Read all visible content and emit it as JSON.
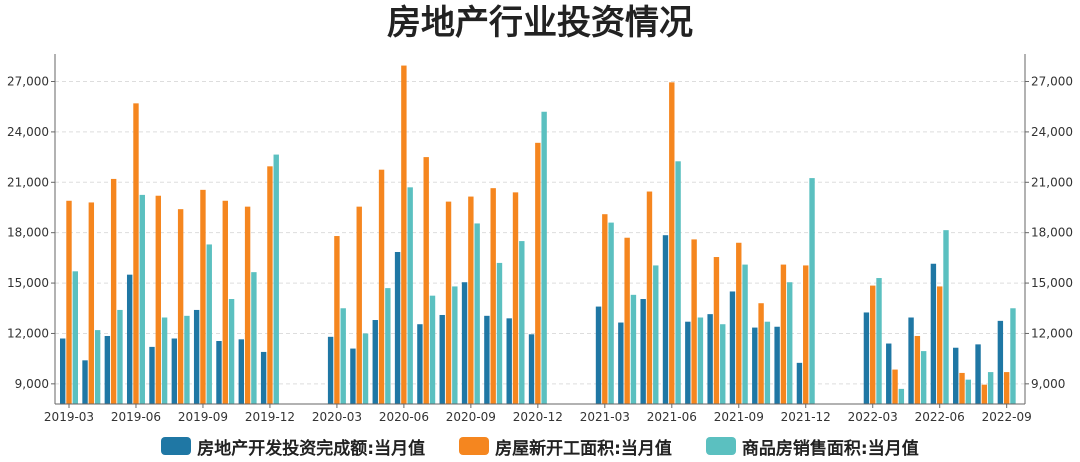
{
  "chart_data": {
    "type": "bar",
    "title": "房地产行业投资情况",
    "xlabel": "",
    "ylabel": "",
    "ylim": [
      7800,
      28400
    ],
    "yticks": [
      9000,
      12000,
      15000,
      18000,
      21000,
      24000,
      27000
    ],
    "ytick_labels": [
      "9,000",
      "12,000",
      "15,000",
      "18,000",
      "21,000",
      "24,000",
      "27,000"
    ],
    "x_tick_labels": [
      "2019-03",
      "2019-06",
      "2019-09",
      "2019-12",
      "2020-03",
      "2020-06",
      "2020-09",
      "2020-12",
      "2021-03",
      "2021-06",
      "2021-09",
      "2021-12",
      "2022-03",
      "2022-06",
      "2022-09"
    ],
    "legend_position": "bottom",
    "grid": true,
    "categories": [
      "2019-03",
      "2019-04",
      "2019-05",
      "2019-06",
      "2019-07",
      "2019-08",
      "2019-09",
      "2019-10",
      "2019-11",
      "2019-12",
      "2020-01",
      "2020-02",
      "2020-03",
      "2020-04",
      "2020-05",
      "2020-06",
      "2020-07",
      "2020-08",
      "2020-09",
      "2020-10",
      "2020-11",
      "2020-12",
      "2021-01",
      "2021-02",
      "2021-03",
      "2021-04",
      "2021-05",
      "2021-06",
      "2021-07",
      "2021-08",
      "2021-09",
      "2021-10",
      "2021-11",
      "2021-12",
      "2022-01",
      "2022-02",
      "2022-03",
      "2022-04",
      "2022-05",
      "2022-06",
      "2022-07",
      "2022-08",
      "2022-09"
    ],
    "series": [
      {
        "name": "房地产开发投资完成额:当月值",
        "color": "#1f77a4",
        "values": [
          11700,
          10400,
          11850,
          15500,
          11200,
          11700,
          13400,
          11550,
          11650,
          10900,
          null,
          null,
          11800,
          11100,
          12800,
          16850,
          12550,
          13100,
          15050,
          13050,
          12900,
          11950,
          null,
          null,
          13600,
          12650,
          14050,
          17850,
          12700,
          13150,
          14500,
          12350,
          12400,
          10250,
          null,
          null,
          13250,
          11400,
          12950,
          16150,
          11150,
          11350,
          12750
        ]
      },
      {
        "name": "房屋新开工面积:当月值",
        "color": "#f5861f",
        "values": [
          19900,
          19800,
          21200,
          25700,
          20200,
          19400,
          20550,
          19900,
          19550,
          21950,
          null,
          null,
          17800,
          19550,
          21750,
          27950,
          22500,
          19850,
          20150,
          20650,
          20400,
          23350,
          null,
          null,
          19100,
          17700,
          20450,
          26950,
          17600,
          16550,
          17400,
          13800,
          16100,
          16050,
          null,
          null,
          14850,
          9850,
          11850,
          14800,
          9650,
          8950,
          9700
        ]
      },
      {
        "name": "商品房销售面积:当月值",
        "color": "#5bc0c0",
        "values": [
          15700,
          12200,
          13400,
          20250,
          12950,
          13050,
          17300,
          14050,
          15650,
          22650,
          null,
          null,
          13500,
          12000,
          14700,
          20700,
          14250,
          14800,
          18550,
          16200,
          17500,
          25200,
          null,
          null,
          18600,
          14300,
          16050,
          22250,
          12950,
          12550,
          16100,
          12700,
          15050,
          21250,
          null,
          null,
          15300,
          8700,
          10950,
          18150,
          9250,
          9700,
          13500
        ]
      }
    ]
  }
}
